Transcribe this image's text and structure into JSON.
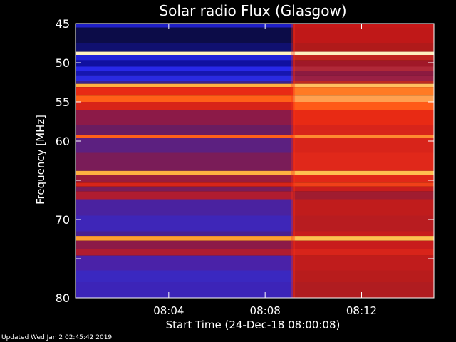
{
  "chart_data": {
    "type": "heatmap",
    "title": "Solar radio Flux (Glasgow)",
    "ylabel": "Frequency [MHz]",
    "xlabel": "Start Time (24-Dec-18 08:00:08)",
    "y_ticks": [
      45,
      50,
      55,
      60,
      65,
      70,
      75,
      80
    ],
    "y_tick_labels": [
      "45",
      "50",
      "55",
      "60",
      "",
      "70",
      "",
      "80"
    ],
    "ylim": [
      80,
      45
    ],
    "x_tick_labels": [
      "08:04",
      "08:08",
      "08:12"
    ],
    "x_tick_minutes": [
      4,
      8,
      12
    ],
    "xlim_minutes": [
      0.133,
      15.0
    ],
    "transition_minutes": 9.15,
    "color_scale": [
      "#08083a",
      "#1c1ce0",
      "#5a28c8",
      "#a0205a",
      "#d81c14",
      "#ff6414",
      "#ffd060"
    ],
    "bands": [
      {
        "mhz_from": 45.0,
        "mhz_to": 45.5,
        "before": "#2020c8",
        "after": "#c81818"
      },
      {
        "mhz_from": 45.5,
        "mhz_to": 47.5,
        "before": "#0c0c48",
        "after": "#c01818"
      },
      {
        "mhz_from": 47.5,
        "mhz_to": 48.6,
        "before": "#101070",
        "after": "#b01a1a"
      },
      {
        "mhz_from": 48.6,
        "mhz_to": 49.0,
        "before": "#fff0c0",
        "after": "#fff0c0"
      },
      {
        "mhz_from": 49.0,
        "mhz_to": 49.7,
        "before": "#2020d8",
        "after": "#c02420"
      },
      {
        "mhz_from": 49.7,
        "mhz_to": 50.5,
        "before": "#1010a0",
        "after": "#a01828"
      },
      {
        "mhz_from": 50.5,
        "mhz_to": 51.0,
        "before": "#2828e8",
        "after": "#b02838"
      },
      {
        "mhz_from": 51.0,
        "mhz_to": 51.6,
        "before": "#1616b0",
        "after": "#8c1a40"
      },
      {
        "mhz_from": 51.6,
        "mhz_to": 52.3,
        "before": "#2a2ae0",
        "after": "#9a2044"
      },
      {
        "mhz_from": 52.3,
        "mhz_to": 52.7,
        "before": "#3a2090",
        "after": "#c02a20"
      },
      {
        "mhz_from": 52.7,
        "mhz_to": 53.1,
        "before": "#ffb040",
        "after": "#ffc060"
      },
      {
        "mhz_from": 53.1,
        "mhz_to": 54.2,
        "before": "#e82a14",
        "after": "#ff7a24"
      },
      {
        "mhz_from": 54.2,
        "mhz_to": 55.0,
        "before": "#ff6018",
        "after": "#ffa050"
      },
      {
        "mhz_from": 55.0,
        "mhz_to": 56.0,
        "before": "#d82418",
        "after": "#ff5a18"
      },
      {
        "mhz_from": 56.0,
        "mhz_to": 58.0,
        "before": "#8c1a48",
        "after": "#e82a14"
      },
      {
        "mhz_from": 58.0,
        "mhz_to": 59.2,
        "before": "#6a1c60",
        "after": "#d8241a"
      },
      {
        "mhz_from": 59.2,
        "mhz_to": 59.6,
        "before": "#ff6018",
        "after": "#ff8a30"
      },
      {
        "mhz_from": 59.6,
        "mhz_to": 61.5,
        "before": "#5c2080",
        "after": "#d8241a"
      },
      {
        "mhz_from": 61.5,
        "mhz_to": 63.8,
        "before": "#7a1c58",
        "after": "#e0281a"
      },
      {
        "mhz_from": 63.8,
        "mhz_to": 64.3,
        "before": "#ffb040",
        "after": "#ffc050"
      },
      {
        "mhz_from": 64.3,
        "mhz_to": 65.3,
        "before": "#9a1c3c",
        "after": "#e02818"
      },
      {
        "mhz_from": 65.3,
        "mhz_to": 65.8,
        "before": "#d82418",
        "after": "#f04018"
      },
      {
        "mhz_from": 65.8,
        "mhz_to": 66.4,
        "before": "#7a1c58",
        "after": "#c81c1c"
      },
      {
        "mhz_from": 66.4,
        "mhz_to": 67.5,
        "before": "#b01c30",
        "after": "#a01c30"
      },
      {
        "mhz_from": 67.5,
        "mhz_to": 69.5,
        "before": "#4a22a0",
        "after": "#c01c1c"
      },
      {
        "mhz_from": 69.5,
        "mhz_to": 71.5,
        "before": "#3e26b8",
        "after": "#b81c20"
      },
      {
        "mhz_from": 71.5,
        "mhz_to": 72.1,
        "before": "#4a2090",
        "after": "#c81c1c"
      },
      {
        "mhz_from": 72.1,
        "mhz_to": 72.7,
        "before": "#ffa030",
        "after": "#ffc050"
      },
      {
        "mhz_from": 72.7,
        "mhz_to": 73.8,
        "before": "#8c1a48",
        "after": "#c81c1c"
      },
      {
        "mhz_from": 73.8,
        "mhz_to": 74.6,
        "before": "#b01c30",
        "after": "#d8241a"
      },
      {
        "mhz_from": 74.6,
        "mhz_to": 76.5,
        "before": "#4a22a8",
        "after": "#c01c1c"
      },
      {
        "mhz_from": 76.5,
        "mhz_to": 78.0,
        "before": "#3a28c0",
        "after": "#b81c1c"
      },
      {
        "mhz_from": 78.0,
        "mhz_to": 80.0,
        "before": "#3c24b8",
        "after": "#b01c20"
      }
    ]
  },
  "footer": {
    "updated_text": "Updated Wed Jan  2 02:45:42 2019"
  }
}
